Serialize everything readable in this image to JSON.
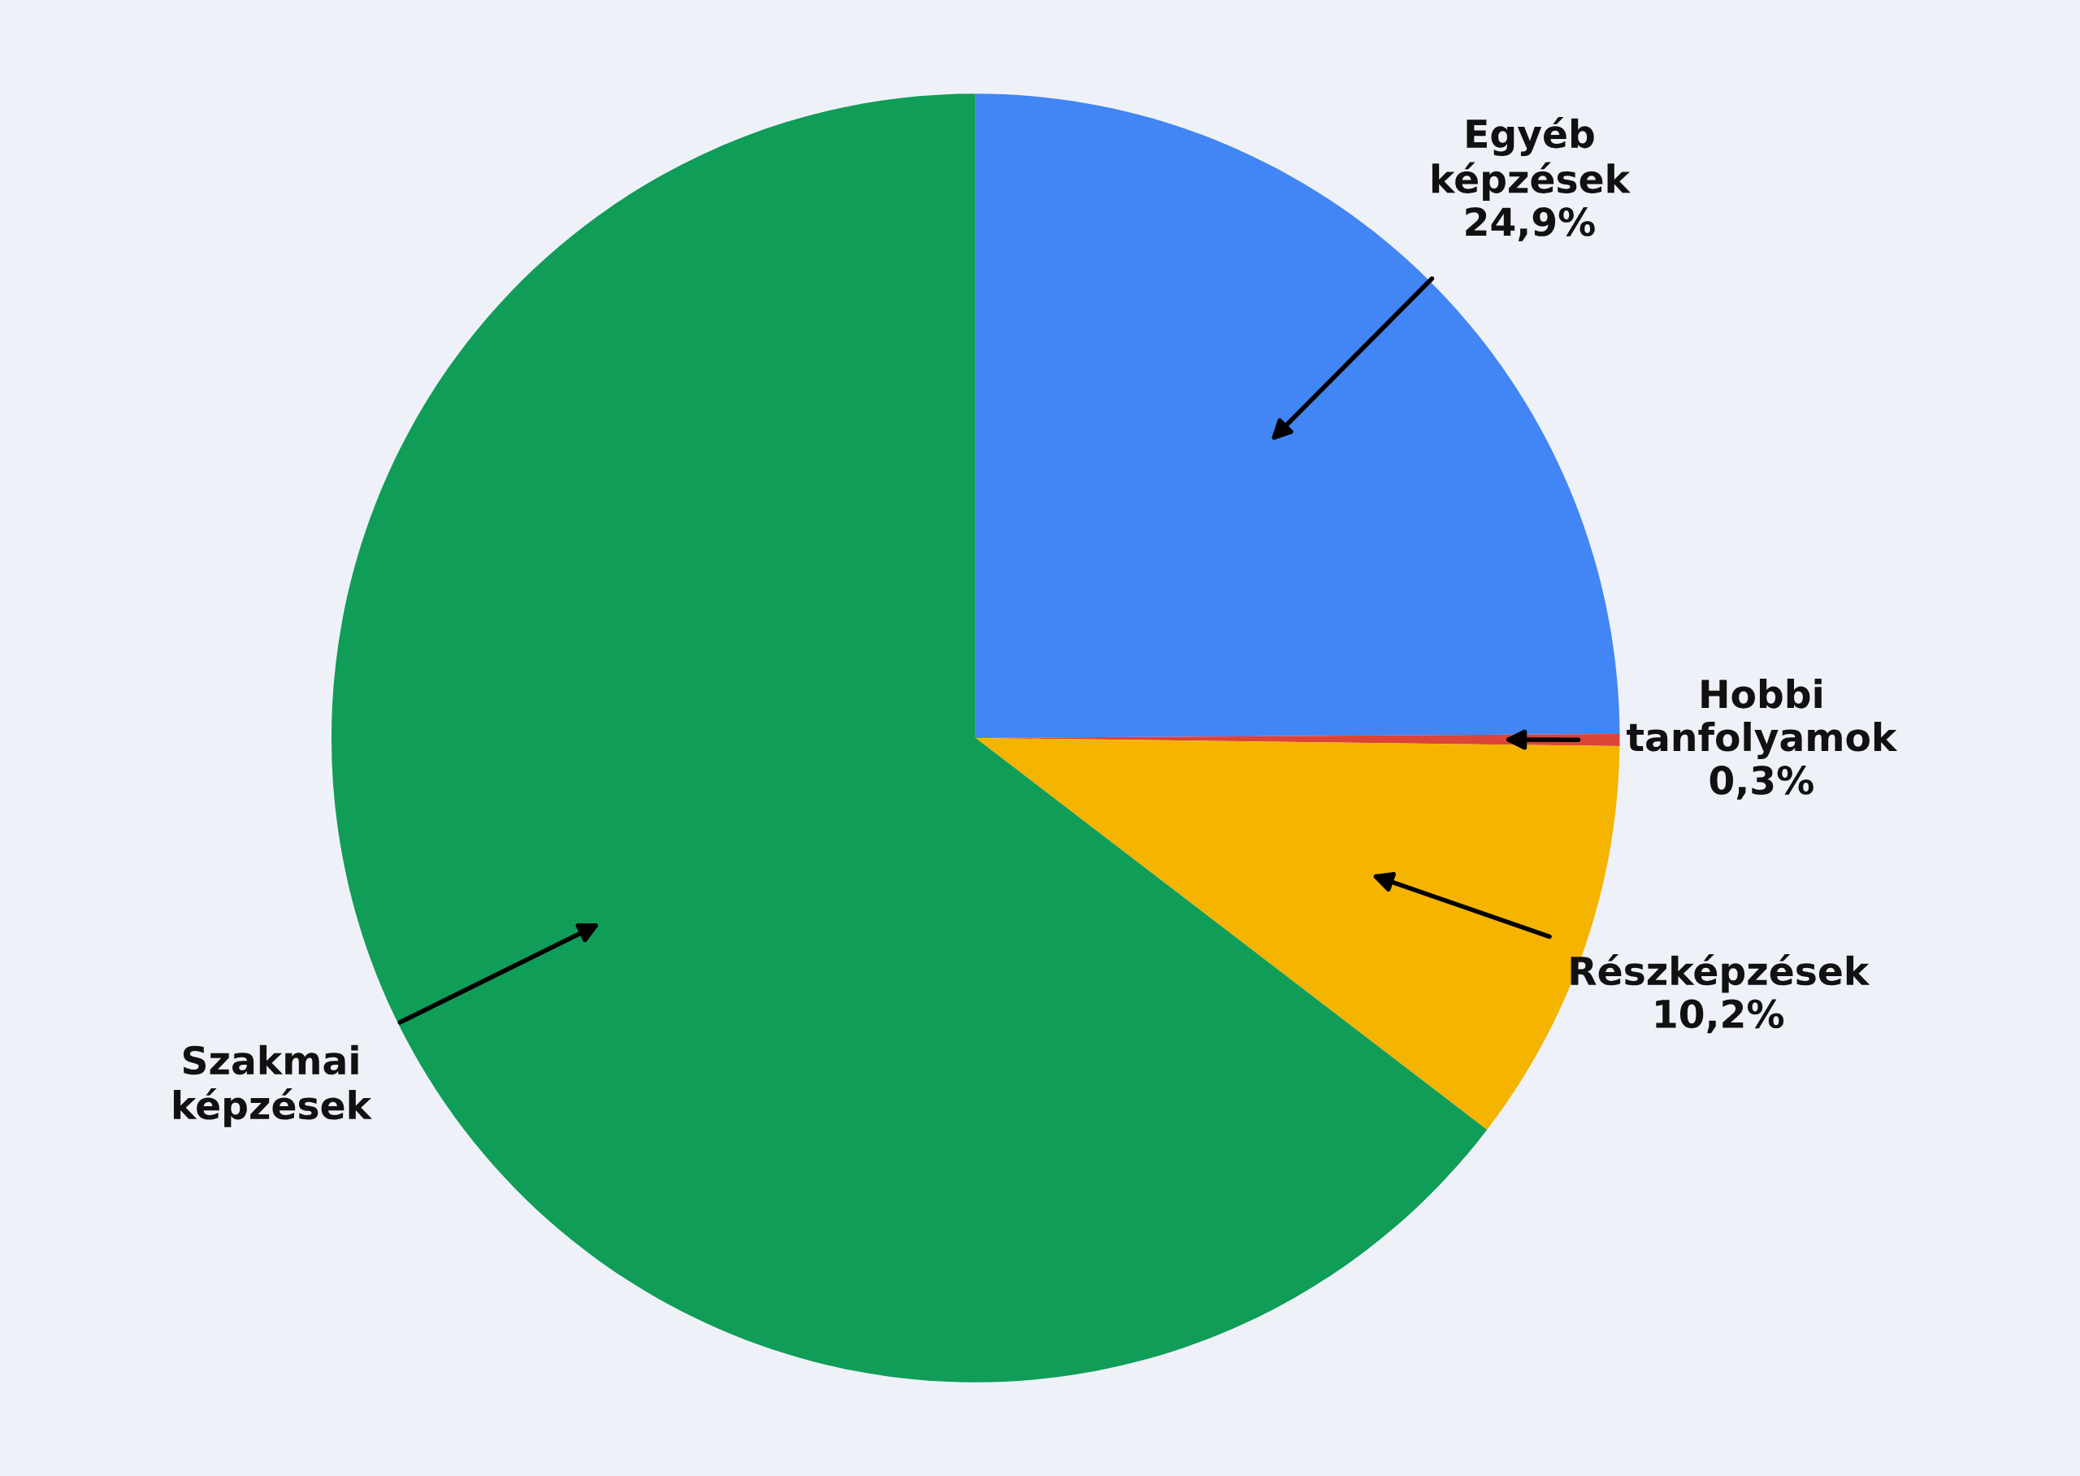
{
  "chart_data": {
    "type": "pie",
    "categories": [
      "Egyéb\nképzések",
      "Hobbi\ntanfolyamok",
      "Részképzések",
      "Szakmai\nképzések"
    ],
    "values": [
      24.9,
      0.3,
      10.2,
      64.6
    ],
    "value_labels": [
      "24,9%",
      "0,3%",
      "10,2%",
      null
    ],
    "colors": [
      "#4285f4",
      "#db4437",
      "#f4b400",
      "#0f9d58"
    ],
    "legend": false
  }
}
